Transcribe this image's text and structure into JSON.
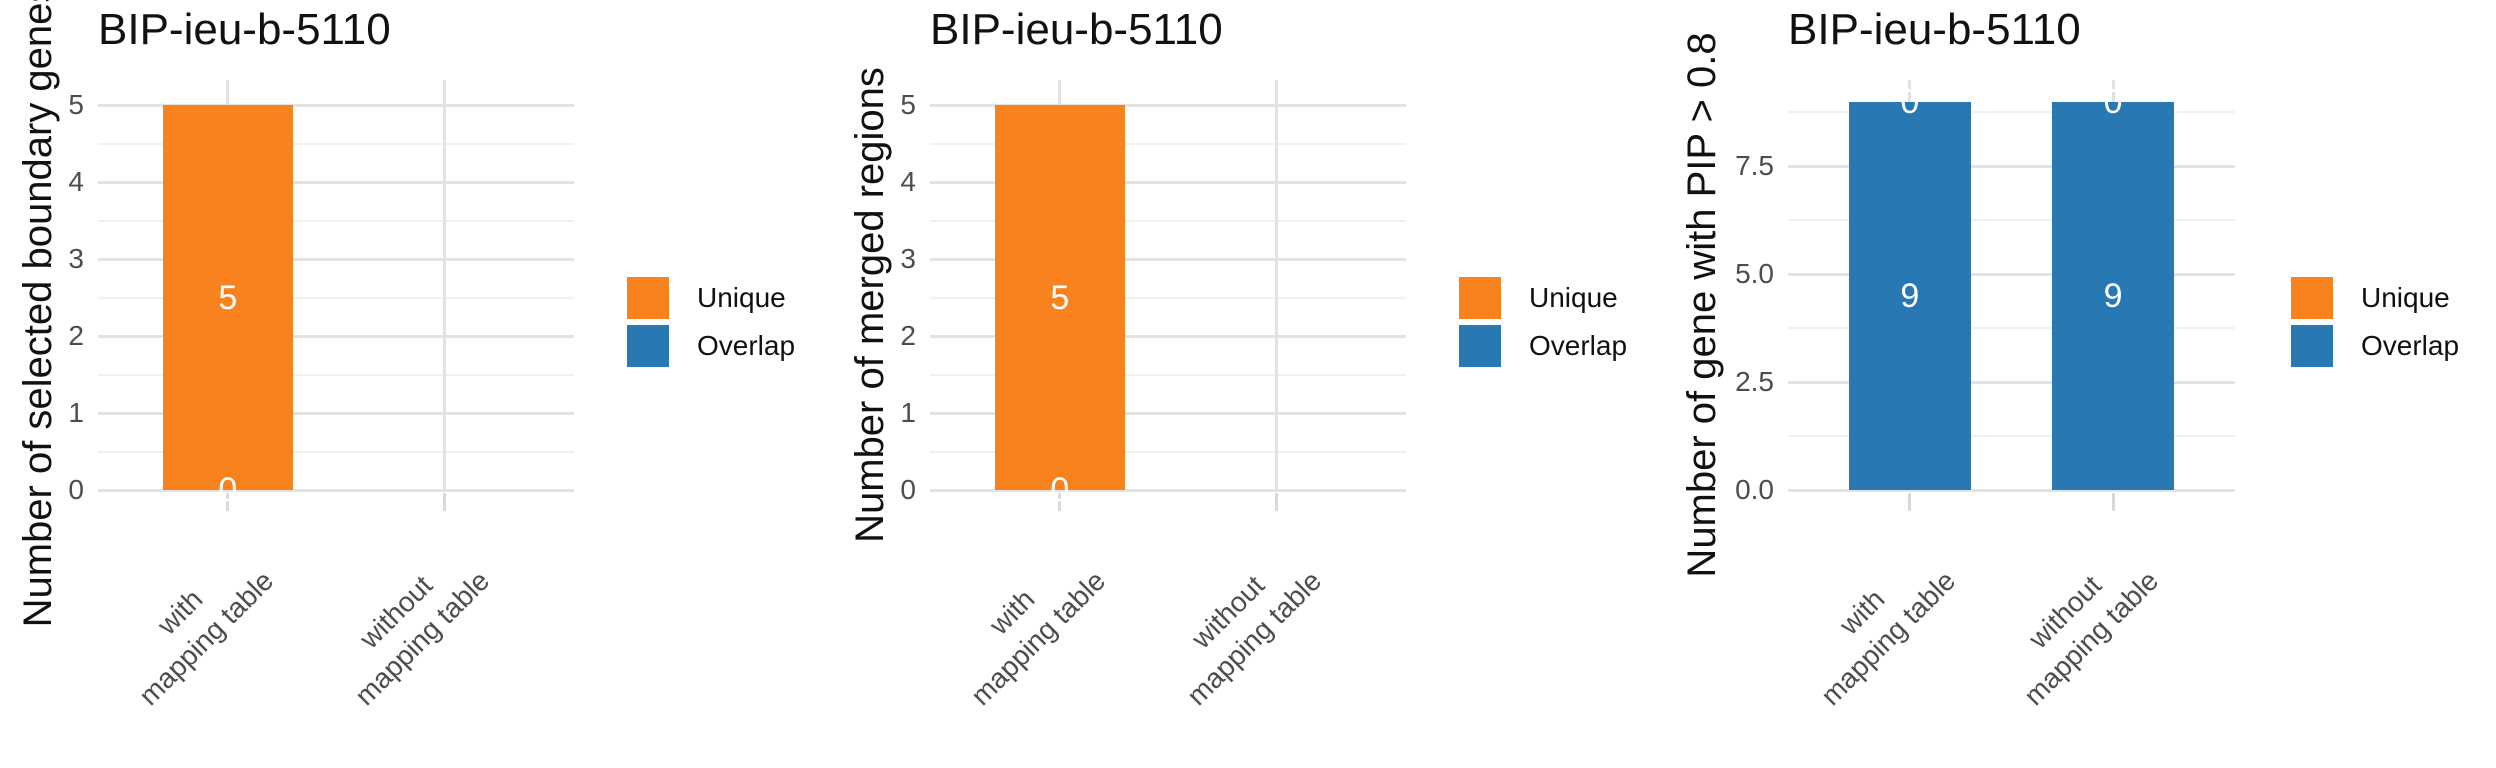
{
  "legend": {
    "items": [
      {
        "label": "Unique",
        "color": "#F8821D"
      },
      {
        "label": "Overlap",
        "color": "#2878B4"
      }
    ]
  },
  "chart_data": [
    {
      "type": "bar",
      "title": "BIP-ieu-b-5110",
      "ylabel": "Number of selected boundary genes",
      "xlabel": "",
      "categories": [
        "with\nmapping table",
        "without\nmapping table"
      ],
      "stacked": true,
      "series": [
        {
          "name": "Overlap",
          "color": "#2878B4",
          "values": [
            0,
            null
          ]
        },
        {
          "name": "Unique",
          "color": "#F8821D",
          "values": [
            5,
            null
          ]
        }
      ],
      "bar_value_labels": [
        [
          "0",
          "5"
        ],
        []
      ],
      "yticks": [
        0,
        1,
        2,
        3,
        4,
        5
      ],
      "ytick_labels": [
        "0",
        "1",
        "2",
        "3",
        "4",
        "5"
      ],
      "minor_ticks": [
        0.5,
        1.5,
        2.5,
        3.5,
        4.5
      ],
      "ylim": [
        0,
        5.33
      ],
      "grid": true,
      "legend_position": "right",
      "legend_entries": [
        "Unique",
        "Overlap"
      ]
    },
    {
      "type": "bar",
      "title": "BIP-ieu-b-5110",
      "ylabel": "Number of merged regions",
      "xlabel": "",
      "categories": [
        "with\nmapping table",
        "without\nmapping table"
      ],
      "stacked": true,
      "series": [
        {
          "name": "Overlap",
          "color": "#2878B4",
          "values": [
            0,
            null
          ]
        },
        {
          "name": "Unique",
          "color": "#F8821D",
          "values": [
            5,
            null
          ]
        }
      ],
      "bar_value_labels": [
        [
          "0",
          "5"
        ],
        []
      ],
      "yticks": [
        0,
        1,
        2,
        3,
        4,
        5
      ],
      "ytick_labels": [
        "0",
        "1",
        "2",
        "3",
        "4",
        "5"
      ],
      "minor_ticks": [
        0.5,
        1.5,
        2.5,
        3.5,
        4.5
      ],
      "ylim": [
        0,
        5.33
      ],
      "grid": true,
      "legend_position": "right",
      "legend_entries": [
        "Unique",
        "Overlap"
      ]
    },
    {
      "type": "bar",
      "title": "BIP-ieu-b-5110",
      "ylabel": "Number of gene with PIP > 0.8",
      "xlabel": "",
      "categories": [
        "with\nmapping table",
        "without\nmapping table"
      ],
      "stacked": true,
      "series": [
        {
          "name": "Overlap",
          "color": "#2878B4",
          "values": [
            9,
            9
          ]
        },
        {
          "name": "Unique",
          "color": "#F8821D",
          "values": [
            0,
            0
          ]
        }
      ],
      "bar_value_labels": [
        [
          "9",
          "0"
        ],
        [
          "9",
          "0"
        ]
      ],
      "yticks": [
        0,
        2.5,
        5,
        7.5
      ],
      "ytick_labels": [
        "0.0",
        "2.5",
        "5.0",
        "7.5"
      ],
      "minor_ticks": [
        1.25,
        3.75,
        6.25,
        8.75
      ],
      "ylim": [
        0,
        9.5
      ],
      "grid": true,
      "legend_position": "right",
      "legend_entries": [
        "Unique",
        "Overlap"
      ]
    }
  ]
}
